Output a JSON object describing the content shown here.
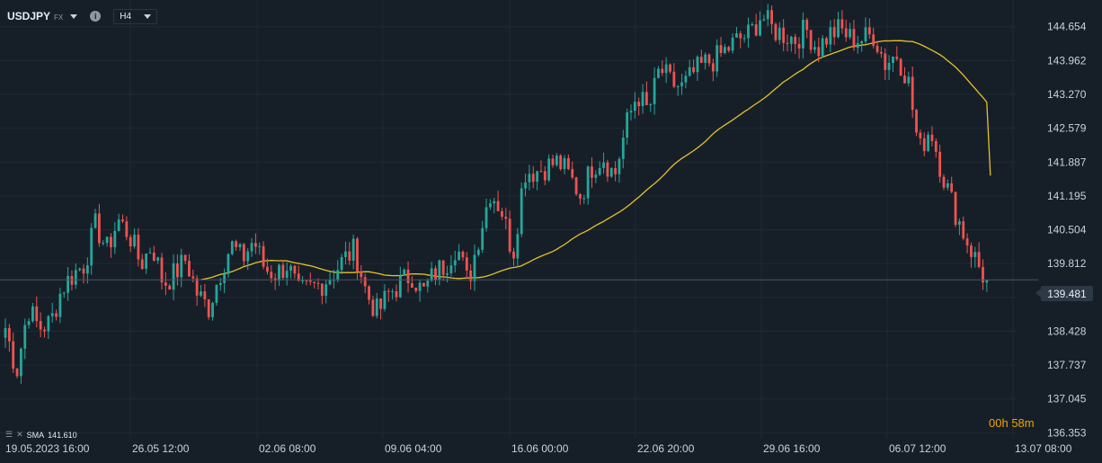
{
  "header": {
    "symbol": "USDJPY",
    "instrument_type": "FX",
    "timeframe": "H4",
    "info_icon": "info-icon"
  },
  "indicator": {
    "name": "SMA",
    "value": "141.610",
    "color": "#e6c229"
  },
  "countdown": {
    "hours": "00h",
    "minutes": "58m"
  },
  "current_price": {
    "label": "139.481",
    "value": 139.481
  },
  "colors": {
    "background": "#161f28",
    "up": "#26a69a",
    "down": "#ef5350",
    "sma": "#e6c229",
    "grid": "#1f2a35"
  },
  "chart_data": {
    "type": "candlestick",
    "y_ticks": [
      "144.654",
      "143.962",
      "143.270",
      "142.579",
      "141.887",
      "141.195",
      "140.504",
      "139.812",
      "139.120",
      "138.428",
      "137.737",
      "137.045",
      "136.353"
    ],
    "y_tick_values": [
      144.654,
      143.962,
      143.27,
      142.579,
      141.887,
      141.195,
      140.504,
      139.812,
      139.12,
      138.428,
      137.737,
      137.045,
      136.353
    ],
    "x_ticks": [
      "19.05.2023  16:00",
      "26.05  12:00",
      "02.06  08:00",
      "09.06  04:00",
      "16.06  00:00",
      "22.06  20:00",
      "29.06  16:00",
      "06.07  12:00",
      "13.07  08:00"
    ],
    "ylim": [
      136.25,
      145.2
    ],
    "close_path": [
      138.5,
      137.6,
      138.9,
      138.5,
      138.6,
      139.3,
      139.6,
      139.8,
      140.6,
      140.1,
      140.7,
      140.4,
      139.8,
      140.2,
      139.4,
      139.6,
      139.9,
      139.2,
      138.9,
      139.6,
      140.2,
      139.9,
      140.3,
      139.7,
      139.6,
      139.8,
      139.2,
      139.3,
      139.4,
      139.6,
      139.9,
      140.1,
      139.2,
      138.8,
      139.2,
      139.4,
      139.6,
      139.2,
      139.6,
      139.8,
      140.2,
      139.4,
      140.4,
      141.3,
      140.9,
      140.0,
      141.7,
      141.7,
      141.8,
      141.9,
      141.6,
      141.2,
      141.8,
      142.0,
      141.6,
      142.6,
      143.3,
      142.9,
      143.8,
      143.5,
      143.4,
      143.7,
      143.9,
      144.0,
      144.2,
      144.4,
      144.5,
      144.9,
      144.6,
      144.5,
      144.4,
      144.6,
      144.2,
      144.5,
      144.6,
      144.4,
      144.4,
      144.5,
      143.9,
      144.1,
      143.6,
      142.1,
      142.6,
      141.7,
      141.0,
      140.4,
      139.9,
      139.4
    ],
    "candle_count": 252,
    "sma": {
      "period_label": "SMA",
      "last_value": 141.61
    }
  }
}
